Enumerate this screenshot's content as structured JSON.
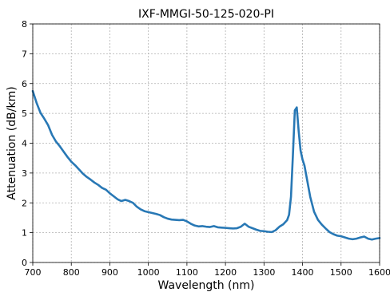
{
  "chart_data": {
    "type": "line",
    "title": "IXF-MMGI-50-125-020-PI",
    "xlabel": "Wavelength (nm)",
    "ylabel": "Attenuation (dB/km)",
    "xlim": [
      700,
      1600
    ],
    "ylim": [
      0,
      8
    ],
    "xticks": [
      700,
      800,
      900,
      1000,
      1100,
      1200,
      1300,
      1400,
      1500,
      1600
    ],
    "yticks": [
      0,
      1,
      2,
      3,
      4,
      5,
      6,
      7,
      8
    ],
    "grid": true,
    "color": "#2878b5",
    "series": [
      {
        "x": [
          700,
          710,
          720,
          730,
          740,
          750,
          760,
          770,
          780,
          790,
          800,
          810,
          820,
          830,
          840,
          850,
          860,
          870,
          880,
          890,
          900,
          910,
          920,
          930,
          940,
          950,
          960,
          970,
          980,
          990,
          1000,
          1010,
          1020,
          1030,
          1040,
          1050,
          1060,
          1070,
          1080,
          1090,
          1100,
          1110,
          1120,
          1130,
          1140,
          1150,
          1160,
          1170,
          1180,
          1190,
          1200,
          1210,
          1220,
          1230,
          1240,
          1250,
          1260,
          1270,
          1280,
          1290,
          1300,
          1310,
          1320,
          1330,
          1340,
          1350,
          1360,
          1365,
          1370,
          1375,
          1380,
          1385,
          1390,
          1395,
          1400,
          1405,
          1410,
          1420,
          1430,
          1440,
          1450,
          1460,
          1470,
          1480,
          1490,
          1500,
          1510,
          1520,
          1530,
          1540,
          1550,
          1560,
          1570,
          1580,
          1590,
          1600
        ],
        "y": [
          5.75,
          5.35,
          5.02,
          4.82,
          4.6,
          4.28,
          4.06,
          3.9,
          3.72,
          3.54,
          3.38,
          3.26,
          3.12,
          2.98,
          2.87,
          2.78,
          2.68,
          2.6,
          2.5,
          2.44,
          2.32,
          2.22,
          2.12,
          2.06,
          2.1,
          2.06,
          2.0,
          1.87,
          1.78,
          1.72,
          1.69,
          1.66,
          1.63,
          1.59,
          1.52,
          1.47,
          1.44,
          1.43,
          1.42,
          1.43,
          1.38,
          1.3,
          1.24,
          1.21,
          1.22,
          1.2,
          1.19,
          1.22,
          1.18,
          1.17,
          1.16,
          1.15,
          1.14,
          1.15,
          1.2,
          1.3,
          1.2,
          1.15,
          1.1,
          1.06,
          1.05,
          1.03,
          1.02,
          1.08,
          1.2,
          1.28,
          1.42,
          1.6,
          2.2,
          3.6,
          5.1,
          5.2,
          4.4,
          3.75,
          3.45,
          3.25,
          2.9,
          2.2,
          1.7,
          1.43,
          1.27,
          1.14,
          1.02,
          0.95,
          0.9,
          0.88,
          0.84,
          0.8,
          0.78,
          0.8,
          0.84,
          0.87,
          0.8,
          0.77,
          0.8,
          0.82
        ]
      }
    ]
  }
}
